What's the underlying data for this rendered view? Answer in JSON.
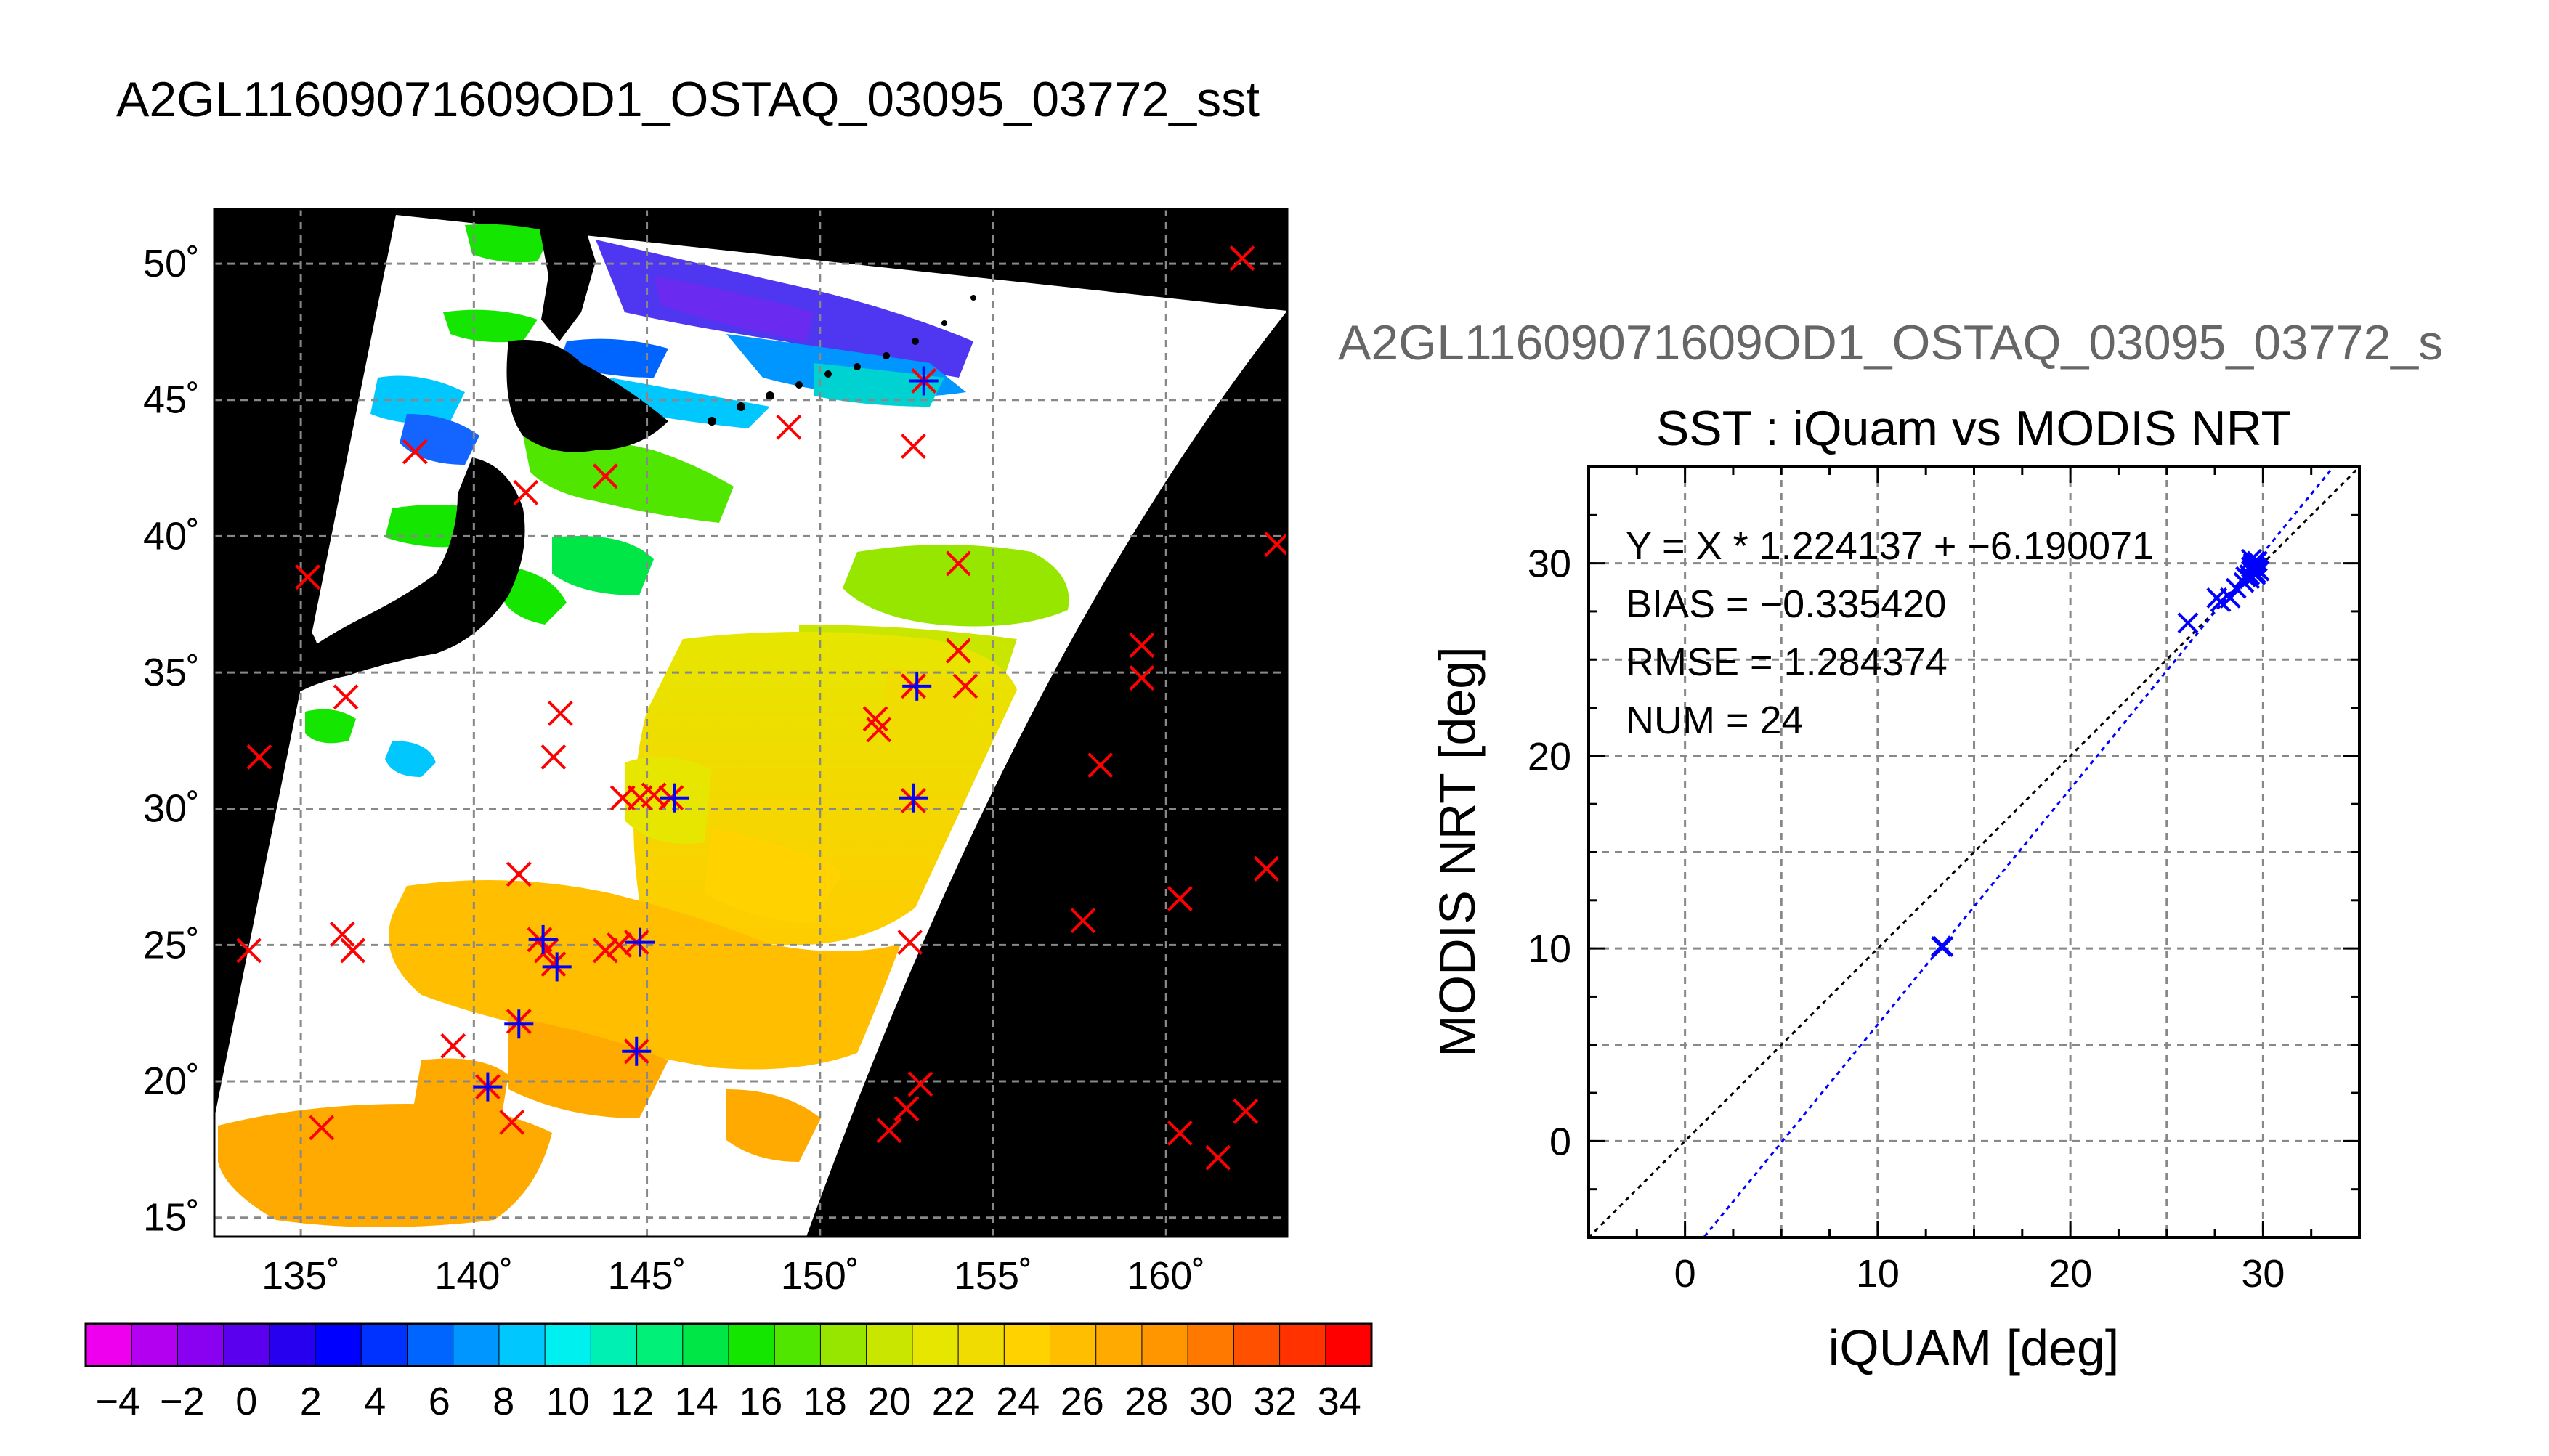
{
  "page_title": "A2GL11609071609OD1_OSTAQ_03095_03772_sst",
  "scatter_subtitle": "A2GL11609071609OD1_OSTAQ_03095_03772_s",
  "colors": {
    "land": "#000000",
    "buoy_marker": "#ff0000",
    "matched_marker": "#0000ff",
    "regression_line": "#0000ff",
    "identity_line": "#000000",
    "grid": "#888888"
  },
  "chart_data": [
    {
      "type": "heatmap",
      "title": "",
      "x_ticks": [
        "135˚",
        "140˚",
        "145˚",
        "150˚",
        "155˚",
        "160˚"
      ],
      "y_ticks": [
        "15˚",
        "20˚",
        "25˚",
        "30˚",
        "35˚",
        "40˚",
        "45˚",
        "50˚"
      ],
      "xlim": [
        132.5,
        163.5
      ],
      "ylim": [
        14.3,
        52.0
      ],
      "grid": true,
      "colorbar": {
        "tick_labels": [
          "−4",
          "−2",
          "0",
          "2",
          "4",
          "6",
          "8",
          "10",
          "12",
          "14",
          "16",
          "18",
          "20",
          "22",
          "24",
          "26",
          "28",
          "30",
          "32",
          "34"
        ],
        "range": [
          -5,
          35
        ],
        "colors": [
          "#ee00ee",
          "#b400f0",
          "#8a00f0",
          "#5a00ee",
          "#2800f0",
          "#0000ff",
          "#0032ff",
          "#0064ff",
          "#0096ff",
          "#00c8ff",
          "#00f0f0",
          "#00f0b4",
          "#00f078",
          "#00e646",
          "#14e600",
          "#50e600",
          "#96e600",
          "#c8e600",
          "#e6e600",
          "#f0dc00",
          "#ffd200",
          "#ffbe00",
          "#ffaa00",
          "#ff9600",
          "#ff7800",
          "#ff5000",
          "#ff3200",
          "#ff0000"
        ]
      },
      "buoy_points": [
        [
          162.2,
          50.2
        ],
        [
          153.0,
          45.7
        ],
        [
          138.3,
          43.1
        ],
        [
          149.1,
          44.0
        ],
        [
          152.7,
          43.3
        ],
        [
          143.8,
          42.2
        ],
        [
          141.5,
          41.6
        ],
        [
          163.2,
          39.7
        ],
        [
          135.2,
          38.5
        ],
        [
          154.0,
          39.0
        ],
        [
          159.3,
          36.0
        ],
        [
          159.3,
          34.8
        ],
        [
          154.0,
          35.8
        ],
        [
          136.3,
          34.1
        ],
        [
          152.7,
          34.5
        ],
        [
          154.2,
          34.5
        ],
        [
          142.5,
          33.5
        ],
        [
          151.6,
          33.3
        ],
        [
          151.7,
          32.9
        ],
        [
          142.3,
          31.9
        ],
        [
          133.8,
          31.9
        ],
        [
          158.1,
          31.6
        ],
        [
          144.3,
          30.4
        ],
        [
          144.8,
          30.4
        ],
        [
          145.2,
          30.5
        ],
        [
          145.7,
          30.4
        ],
        [
          152.7,
          30.3
        ],
        [
          162.9,
          27.8
        ],
        [
          141.3,
          27.6
        ],
        [
          160.4,
          26.7
        ],
        [
          157.6,
          25.9
        ],
        [
          136.2,
          25.4
        ],
        [
          136.5,
          24.8
        ],
        [
          141.9,
          25.2
        ],
        [
          142.1,
          24.8
        ],
        [
          142.3,
          24.3
        ],
        [
          143.8,
          24.8
        ],
        [
          144.2,
          25.0
        ],
        [
          144.7,
          25.1
        ],
        [
          133.5,
          24.8
        ],
        [
          152.6,
          25.1
        ],
        [
          141.3,
          22.2
        ],
        [
          139.4,
          21.3
        ],
        [
          144.7,
          21.1
        ],
        [
          140.4,
          19.8
        ],
        [
          152.9,
          19.9
        ],
        [
          141.1,
          18.5
        ],
        [
          135.6,
          18.3
        ],
        [
          152.5,
          19.0
        ],
        [
          152.0,
          18.2
        ],
        [
          160.4,
          18.1
        ],
        [
          162.3,
          18.9
        ],
        [
          161.5,
          17.2
        ]
      ],
      "matched_points": [
        [
          153.0,
          45.7
        ],
        [
          152.8,
          34.5
        ],
        [
          145.8,
          30.4
        ],
        [
          152.7,
          30.4
        ],
        [
          142.0,
          25.2
        ],
        [
          142.4,
          24.2
        ],
        [
          144.8,
          25.1
        ],
        [
          141.3,
          22.1
        ],
        [
          144.7,
          21.1
        ],
        [
          140.4,
          19.8
        ]
      ]
    },
    {
      "type": "scatter",
      "title": "SST : iQuam vs MODIS NRT",
      "xlabel": "iQUAM [deg]",
      "ylabel": "MODIS NRT [deg]",
      "xlim": [
        -5,
        35
      ],
      "ylim": [
        -5,
        35
      ],
      "x_ticks": [
        0,
        10,
        20,
        30
      ],
      "y_ticks": [
        0,
        10,
        20,
        30
      ],
      "grid": true,
      "stats": [
        "Y = X * 1.224137 + −6.190071",
        "BIAS = −0.335420",
        "RMSE = 1.284374",
        "NUM = 24"
      ],
      "regression": {
        "slope": 1.224137,
        "intercept": -6.190071
      },
      "points": [
        [
          13.3,
          10.1
        ],
        [
          13.4,
          10.1
        ],
        [
          26.1,
          26.9
        ],
        [
          27.6,
          28.2
        ],
        [
          27.8,
          28.0
        ],
        [
          28.3,
          28.2
        ],
        [
          28.6,
          28.7
        ],
        [
          29.0,
          29.0
        ],
        [
          29.1,
          29.3
        ],
        [
          29.3,
          29.4
        ],
        [
          29.4,
          29.6
        ],
        [
          29.4,
          29.8
        ],
        [
          29.5,
          30.0
        ],
        [
          29.6,
          29.5
        ],
        [
          29.6,
          29.8
        ],
        [
          29.7,
          30.1
        ],
        [
          29.5,
          29.9
        ],
        [
          29.6,
          29.4
        ],
        [
          29.4,
          30.2
        ],
        [
          29.7,
          29.7
        ],
        [
          29.3,
          29.2
        ],
        [
          29.8,
          29.6
        ],
        [
          29.5,
          29.6
        ],
        [
          29.6,
          30.0
        ]
      ]
    }
  ]
}
